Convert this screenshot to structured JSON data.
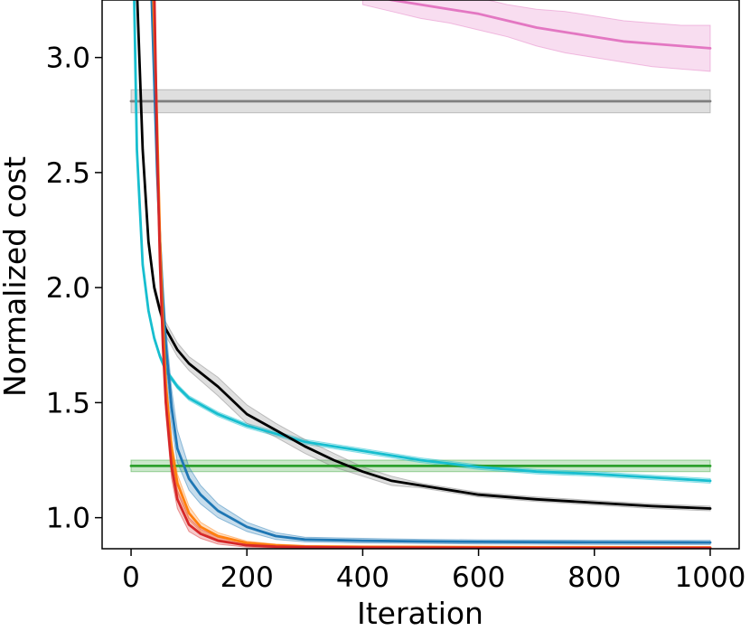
{
  "chart_data": {
    "type": "line",
    "xlabel": "Iteration",
    "ylabel": "Normalized cost",
    "xlim": [
      -50,
      1050
    ],
    "ylim": [
      0.865,
      3.25
    ],
    "xticks": [
      0,
      200,
      400,
      600,
      800,
      1000
    ],
    "xtick_labels": [
      "0",
      "200",
      "400",
      "600",
      "800",
      "1000"
    ],
    "yticks": [
      1.0,
      1.5,
      2.0,
      2.5,
      3.0
    ],
    "ytick_labels": [
      "1.0",
      "1.5",
      "2.0",
      "2.5",
      "3.0"
    ],
    "grid": false,
    "legend": "none",
    "series": [
      {
        "color": "#7f7f7f",
        "band_color": "#7f7f7f",
        "x": [
          0,
          1000
        ],
        "y": [
          2.81,
          2.81
        ],
        "lower": [
          2.76,
          2.76
        ],
        "upper": [
          2.86,
          2.86
        ]
      },
      {
        "color": "#2ca02c",
        "band_color": "#2ca02c",
        "x": [
          0,
          1000
        ],
        "y": [
          1.225,
          1.225
        ],
        "lower": [
          1.2,
          1.2
        ],
        "upper": [
          1.25,
          1.25
        ]
      },
      {
        "color": "#e377c2",
        "band_color": "#e377c2",
        "x": [
          400,
          450,
          500,
          550,
          600,
          650,
          700,
          750,
          800,
          850,
          900,
          950,
          1000
        ],
        "y": [
          3.28,
          3.25,
          3.23,
          3.21,
          3.19,
          3.16,
          3.13,
          3.11,
          3.09,
          3.07,
          3.06,
          3.05,
          3.04
        ],
        "lower": [
          3.23,
          3.2,
          3.17,
          3.15,
          3.12,
          3.09,
          3.05,
          3.02,
          3.0,
          2.98,
          2.96,
          2.95,
          2.94
        ],
        "upper": [
          3.33,
          3.3,
          3.29,
          3.27,
          3.26,
          3.23,
          3.21,
          3.2,
          3.18,
          3.16,
          3.15,
          3.14,
          3.14
        ]
      },
      {
        "color": "#17becf",
        "band_color": "#17becf",
        "x": [
          5,
          10,
          20,
          30,
          40,
          50,
          60,
          80,
          100,
          150,
          200,
          300,
          400,
          500,
          600,
          700,
          800,
          900,
          1000
        ],
        "y": [
          3.3,
          2.6,
          2.1,
          1.9,
          1.78,
          1.7,
          1.64,
          1.57,
          1.52,
          1.45,
          1.4,
          1.33,
          1.29,
          1.25,
          1.22,
          1.2,
          1.19,
          1.175,
          1.16
        ],
        "lower": [
          3.29,
          2.59,
          2.09,
          1.89,
          1.77,
          1.69,
          1.63,
          1.56,
          1.51,
          1.44,
          1.39,
          1.32,
          1.28,
          1.24,
          1.21,
          1.19,
          1.18,
          1.165,
          1.15
        ],
        "upper": [
          3.31,
          2.61,
          2.11,
          1.91,
          1.79,
          1.71,
          1.65,
          1.58,
          1.53,
          1.46,
          1.41,
          1.34,
          1.3,
          1.26,
          1.23,
          1.21,
          1.2,
          1.185,
          1.17
        ]
      },
      {
        "color": "#000000",
        "band_color": "#7f7f7f",
        "x": [
          10,
          20,
          30,
          40,
          50,
          60,
          80,
          100,
          150,
          200,
          250,
          300,
          350,
          400,
          450,
          500,
          600,
          700,
          800,
          900,
          1000
        ],
        "y": [
          3.3,
          2.6,
          2.2,
          2.0,
          1.9,
          1.82,
          1.73,
          1.67,
          1.57,
          1.45,
          1.38,
          1.31,
          1.25,
          1.2,
          1.16,
          1.14,
          1.1,
          1.08,
          1.065,
          1.05,
          1.04
        ],
        "lower": [
          3.28,
          2.58,
          2.18,
          1.98,
          1.88,
          1.79,
          1.7,
          1.64,
          1.53,
          1.41,
          1.35,
          1.28,
          1.22,
          1.18,
          1.14,
          1.13,
          1.09,
          1.07,
          1.055,
          1.04,
          1.03
        ],
        "upper": [
          3.32,
          2.62,
          2.22,
          2.02,
          1.92,
          1.85,
          1.76,
          1.7,
          1.61,
          1.49,
          1.41,
          1.34,
          1.28,
          1.22,
          1.18,
          1.15,
          1.11,
          1.09,
          1.075,
          1.06,
          1.05
        ]
      },
      {
        "color": "#1f77b4",
        "band_color": "#1f77b4",
        "x": [
          35,
          40,
          45,
          50,
          55,
          60,
          70,
          80,
          100,
          120,
          150,
          200,
          250,
          300,
          400,
          500,
          600,
          800,
          1000
        ],
        "y": [
          3.3,
          2.9,
          2.5,
          2.2,
          1.95,
          1.75,
          1.48,
          1.3,
          1.17,
          1.1,
          1.03,
          0.96,
          0.92,
          0.905,
          0.9,
          0.897,
          0.895,
          0.893,
          0.892
        ],
        "lower": [
          3.28,
          2.85,
          2.45,
          2.12,
          1.87,
          1.67,
          1.4,
          1.24,
          1.12,
          1.06,
          1.0,
          0.94,
          0.905,
          0.895,
          0.89,
          0.888,
          0.886,
          0.884,
          0.883
        ],
        "upper": [
          3.32,
          2.95,
          2.55,
          2.28,
          2.03,
          1.83,
          1.56,
          1.38,
          1.22,
          1.14,
          1.06,
          0.98,
          0.935,
          0.915,
          0.91,
          0.906,
          0.904,
          0.902,
          0.901
        ]
      },
      {
        "color": "#ff7f0e",
        "band_color": "#ff7f0e",
        "x": [
          38,
          45,
          50,
          55,
          60,
          70,
          80,
          100,
          120,
          150,
          200,
          250,
          300,
          400,
          500,
          700,
          1000
        ],
        "y": [
          3.3,
          2.7,
          2.2,
          1.85,
          1.58,
          1.3,
          1.15,
          1.02,
          0.96,
          0.92,
          0.89,
          0.88,
          0.875,
          0.873,
          0.872,
          0.871,
          0.87
        ],
        "lower": [
          3.28,
          2.65,
          2.15,
          1.8,
          1.53,
          1.26,
          1.11,
          0.99,
          0.94,
          0.905,
          0.882,
          0.875,
          0.87,
          0.868,
          0.867,
          0.866,
          0.865
        ],
        "upper": [
          3.32,
          2.75,
          2.25,
          1.9,
          1.63,
          1.34,
          1.19,
          1.05,
          0.98,
          0.935,
          0.898,
          0.885,
          0.88,
          0.878,
          0.877,
          0.876,
          0.875
        ]
      },
      {
        "color": "#d62728",
        "band_color": "#d62728",
        "x": [
          40,
          45,
          50,
          55,
          60,
          70,
          80,
          100,
          120,
          150,
          200,
          250,
          300,
          400,
          600,
          800,
          1000
        ],
        "y": [
          3.3,
          2.6,
          2.1,
          1.75,
          1.5,
          1.22,
          1.08,
          0.97,
          0.93,
          0.9,
          0.88,
          0.874,
          0.872,
          0.87,
          0.869,
          0.868,
          0.868
        ],
        "lower": [
          3.28,
          2.55,
          2.05,
          1.7,
          1.45,
          1.17,
          1.04,
          0.94,
          0.91,
          0.885,
          0.872,
          0.868,
          0.866,
          0.865,
          0.864,
          0.863,
          0.863
        ],
        "upper": [
          3.32,
          2.65,
          2.15,
          1.8,
          1.55,
          1.27,
          1.12,
          1.0,
          0.95,
          0.915,
          0.888,
          0.88,
          0.878,
          0.875,
          0.874,
          0.873,
          0.873
        ]
      }
    ]
  }
}
